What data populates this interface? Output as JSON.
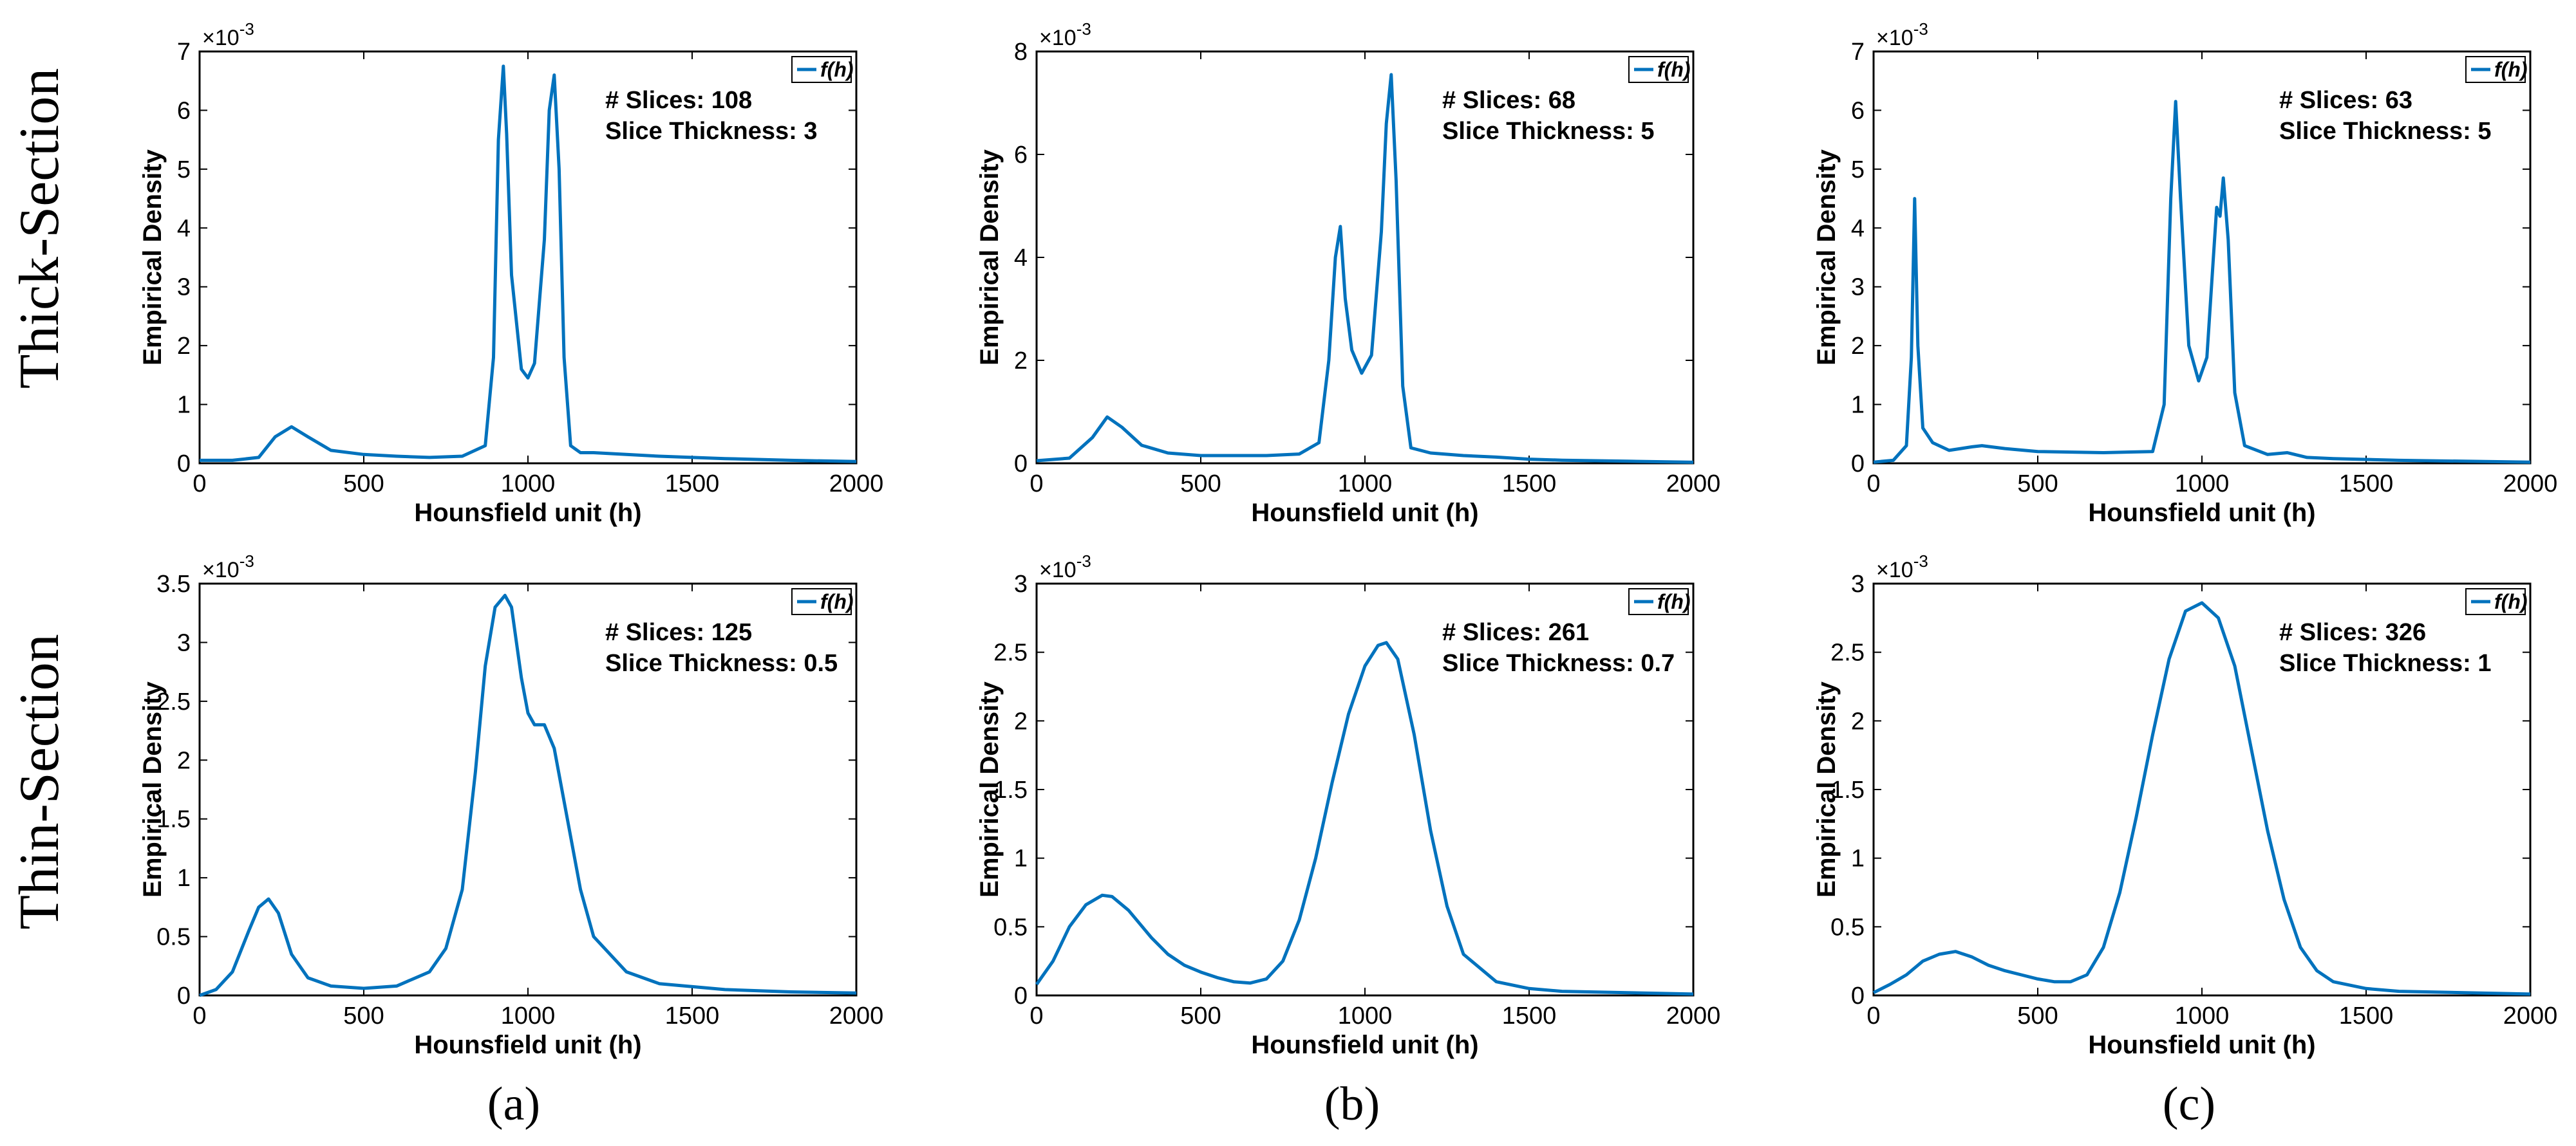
{
  "row_labels": [
    "Thick-Section",
    "Thin-Section"
  ],
  "panel_labels": [
    "(a)",
    "(b)",
    "(c)"
  ],
  "series_color": "#0072BD",
  "chart_data": [
    {
      "type": "line",
      "row": "Thick-Section",
      "column": "(a)",
      "xlabel": "Hounsfield unit (h)",
      "ylabel": "Empirical Density",
      "xlim": [
        0,
        2000
      ],
      "xticks": [
        0,
        500,
        1000,
        1500,
        2000
      ],
      "ylim": [
        0,
        7
      ],
      "yticks": [
        0,
        1,
        2,
        3,
        4,
        5,
        6,
        7
      ],
      "y_multiplier": "×10^-3",
      "legend": "f(h)",
      "annotations": [
        "# Slices: 108",
        "Slice Thickness: 3"
      ],
      "series": [
        {
          "name": "f(h)",
          "x": [
            0,
            100,
            180,
            230,
            280,
            330,
            400,
            500,
            600,
            700,
            800,
            870,
            895,
            910,
            925,
            935,
            950,
            980,
            1000,
            1020,
            1050,
            1065,
            1080,
            1095,
            1110,
            1130,
            1160,
            1200,
            1300,
            1400,
            1500,
            1600,
            1800,
            2000
          ],
          "y": [
            0.05,
            0.05,
            0.1,
            0.45,
            0.62,
            0.45,
            0.22,
            0.15,
            0.12,
            0.1,
            0.12,
            0.3,
            1.8,
            5.5,
            6.75,
            5.6,
            3.2,
            1.6,
            1.45,
            1.7,
            3.8,
            6.0,
            6.6,
            5.0,
            1.8,
            0.3,
            0.18,
            0.18,
            0.15,
            0.12,
            0.1,
            0.08,
            0.05,
            0.03
          ]
        }
      ]
    },
    {
      "type": "line",
      "row": "Thick-Section",
      "column": "(b)",
      "xlabel": "Hounsfield unit (h)",
      "ylabel": "Empirical Density",
      "xlim": [
        0,
        2000
      ],
      "xticks": [
        0,
        500,
        1000,
        1500,
        2000
      ],
      "ylim": [
        0,
        8
      ],
      "yticks": [
        0,
        2,
        4,
        6,
        8
      ],
      "y_multiplier": "×10^-3",
      "legend": "f(h)",
      "annotations": [
        "# Slices: 68",
        "Slice Thickness: 5"
      ],
      "series": [
        {
          "name": "f(h)",
          "x": [
            0,
            100,
            170,
            215,
            260,
            320,
            400,
            500,
            600,
            700,
            800,
            860,
            890,
            910,
            925,
            940,
            960,
            990,
            1020,
            1050,
            1065,
            1080,
            1095,
            1115,
            1140,
            1200,
            1300,
            1400,
            1500,
            1600,
            1800,
            2000
          ],
          "y": [
            0.05,
            0.1,
            0.5,
            0.9,
            0.7,
            0.35,
            0.2,
            0.15,
            0.15,
            0.15,
            0.18,
            0.4,
            2.0,
            4.0,
            4.6,
            3.2,
            2.2,
            1.75,
            2.1,
            4.5,
            6.6,
            7.55,
            5.5,
            1.5,
            0.3,
            0.2,
            0.15,
            0.12,
            0.08,
            0.06,
            0.04,
            0.02
          ]
        }
      ]
    },
    {
      "type": "line",
      "row": "Thick-Section",
      "column": "(c)",
      "xlabel": "Hounsfield unit (h)",
      "ylabel": "Empirical Density",
      "xlim": [
        0,
        2000
      ],
      "xticks": [
        0,
        500,
        1000,
        1500,
        2000
      ],
      "ylim": [
        0,
        7
      ],
      "yticks": [
        0,
        1,
        2,
        3,
        4,
        5,
        6,
        7
      ],
      "y_multiplier": "×10^-3",
      "legend": "f(h)",
      "annotations": [
        "# Slices: 63",
        "Slice Thickness: 5"
      ],
      "series": [
        {
          "name": "f(h)",
          "x": [
            0,
            60,
            100,
            115,
            125,
            135,
            150,
            180,
            230,
            300,
            330,
            400,
            500,
            700,
            850,
            885,
            905,
            920,
            935,
            960,
            990,
            1015,
            1035,
            1045,
            1055,
            1065,
            1080,
            1100,
            1130,
            1200,
            1260,
            1320,
            1400,
            1600,
            2000
          ],
          "y": [
            0.02,
            0.05,
            0.3,
            1.8,
            4.5,
            2.0,
            0.6,
            0.35,
            0.22,
            0.28,
            0.3,
            0.25,
            0.2,
            0.18,
            0.2,
            1.0,
            4.5,
            6.15,
            4.5,
            2.0,
            1.4,
            1.8,
            3.5,
            4.35,
            4.2,
            4.85,
            3.8,
            1.2,
            0.3,
            0.15,
            0.18,
            0.1,
            0.08,
            0.05,
            0.02
          ]
        }
      ]
    },
    {
      "type": "line",
      "row": "Thin-Section",
      "column": "(a)",
      "xlabel": "Hounsfield unit (h)",
      "ylabel": "Empirical Density",
      "xlim": [
        0,
        2000
      ],
      "xticks": [
        0,
        500,
        1000,
        1500,
        2000
      ],
      "ylim": [
        0,
        3.5
      ],
      "yticks": [
        0,
        0.5,
        1,
        1.5,
        2,
        2.5,
        3,
        3.5
      ],
      "y_multiplier": "×10^-3",
      "legend": "f(h)",
      "annotations": [
        "# Slices: 125",
        "Slice Thickness: 0.5"
      ],
      "series": [
        {
          "name": "f(h)",
          "x": [
            0,
            50,
            100,
            150,
            180,
            210,
            240,
            280,
            330,
            400,
            500,
            600,
            700,
            750,
            800,
            840,
            870,
            900,
            930,
            950,
            980,
            1000,
            1020,
            1050,
            1080,
            1120,
            1160,
            1200,
            1300,
            1400,
            1600,
            1800,
            2000
          ],
          "y": [
            0.0,
            0.05,
            0.2,
            0.55,
            0.75,
            0.82,
            0.7,
            0.35,
            0.15,
            0.08,
            0.06,
            0.08,
            0.2,
            0.4,
            0.9,
            1.9,
            2.8,
            3.3,
            3.4,
            3.3,
            2.7,
            2.4,
            2.3,
            2.3,
            2.1,
            1.5,
            0.9,
            0.5,
            0.2,
            0.1,
            0.05,
            0.03,
            0.02
          ]
        }
      ]
    },
    {
      "type": "line",
      "row": "Thin-Section",
      "column": "(b)",
      "xlabel": "Hounsfield unit (h)",
      "ylabel": "Empirical Density",
      "xlim": [
        0,
        2000
      ],
      "xticks": [
        0,
        500,
        1000,
        1500,
        2000
      ],
      "ylim": [
        0,
        3
      ],
      "yticks": [
        0,
        0.5,
        1,
        1.5,
        2,
        2.5,
        3
      ],
      "y_multiplier": "×10^-3",
      "legend": "f(h)",
      "annotations": [
        "# Slices: 261",
        "Slice Thickness: 0.7"
      ],
      "series": [
        {
          "name": "f(h)",
          "x": [
            0,
            50,
            100,
            150,
            200,
            230,
            280,
            350,
            400,
            450,
            500,
            550,
            600,
            650,
            700,
            750,
            800,
            850,
            900,
            950,
            1000,
            1040,
            1065,
            1100,
            1150,
            1200,
            1250,
            1300,
            1400,
            1500,
            1600,
            1800,
            2000
          ],
          "y": [
            0.08,
            0.25,
            0.5,
            0.66,
            0.73,
            0.72,
            0.62,
            0.42,
            0.3,
            0.22,
            0.17,
            0.13,
            0.1,
            0.09,
            0.12,
            0.25,
            0.55,
            1.0,
            1.55,
            2.05,
            2.4,
            2.55,
            2.57,
            2.45,
            1.9,
            1.2,
            0.65,
            0.3,
            0.1,
            0.05,
            0.03,
            0.02,
            0.01
          ]
        }
      ]
    },
    {
      "type": "line",
      "row": "Thin-Section",
      "column": "(c)",
      "xlabel": "Hounsfield unit (h)",
      "ylabel": "Empirical Density",
      "xlim": [
        0,
        2000
      ],
      "xticks": [
        0,
        500,
        1000,
        1500,
        2000
      ],
      "ylim": [
        0,
        3
      ],
      "yticks": [
        0,
        0.5,
        1,
        1.5,
        2,
        2.5,
        3
      ],
      "y_multiplier": "×10^-3",
      "legend": "f(h)",
      "annotations": [
        "# Slices: 326",
        "Slice Thickness: 1"
      ],
      "series": [
        {
          "name": "f(h)",
          "x": [
            0,
            50,
            100,
            150,
            200,
            250,
            300,
            350,
            400,
            450,
            500,
            550,
            600,
            650,
            700,
            750,
            800,
            850,
            900,
            950,
            1000,
            1050,
            1100,
            1150,
            1200,
            1250,
            1300,
            1350,
            1400,
            1500,
            1600,
            1800,
            2000
          ],
          "y": [
            0.02,
            0.08,
            0.15,
            0.25,
            0.3,
            0.32,
            0.28,
            0.22,
            0.18,
            0.15,
            0.12,
            0.1,
            0.1,
            0.15,
            0.35,
            0.75,
            1.3,
            1.9,
            2.45,
            2.8,
            2.86,
            2.75,
            2.4,
            1.8,
            1.2,
            0.7,
            0.35,
            0.18,
            0.1,
            0.05,
            0.03,
            0.02,
            0.01
          ]
        }
      ]
    }
  ]
}
